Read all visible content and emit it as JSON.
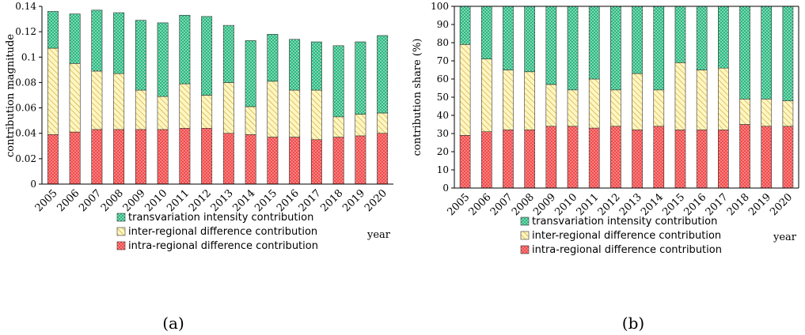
{
  "colors": {
    "transvariation_fill": "#2ab77f",
    "transvariation_dot": "#e6fff2",
    "inter_fill": "#fff6c2",
    "inter_hatch": "#c8a227",
    "intra_fill": "#f24a4a",
    "intra_dot": "#ffd6d6",
    "axis": "#000000"
  },
  "chart_data": [
    {
      "type": "bar",
      "stacked": true,
      "panel_label": "(a)",
      "ylabel": "contribution magnitude",
      "xlabel": "year",
      "ylim": [
        0,
        0.14
      ],
      "yticks": [
        0,
        0.02,
        0.04,
        0.06,
        0.08,
        0.1,
        0.12,
        0.14
      ],
      "ytick_labels": [
        "0",
        "0.02",
        "0.04",
        "0.06",
        "0.08",
        "0.1",
        "0.12",
        "0.14"
      ],
      "categories": [
        "2005",
        "2006",
        "2007",
        "2008",
        "2009",
        "2010",
        "2011",
        "2012",
        "2013",
        "2014",
        "2015",
        "2016",
        "2017",
        "2018",
        "2019",
        "2020"
      ],
      "series": [
        {
          "key": "intra",
          "name": "intra-regional difference contribution",
          "values": [
            0.039,
            0.041,
            0.043,
            0.043,
            0.043,
            0.043,
            0.044,
            0.044,
            0.04,
            0.039,
            0.037,
            0.037,
            0.035,
            0.037,
            0.038,
            0.04
          ]
        },
        {
          "key": "inter",
          "name": "inter-regional difference contribution",
          "values": [
            0.068,
            0.054,
            0.046,
            0.044,
            0.031,
            0.026,
            0.035,
            0.026,
            0.04,
            0.022,
            0.044,
            0.037,
            0.039,
            0.016,
            0.017,
            0.016
          ]
        },
        {
          "key": "trans",
          "name": "transvariation intensity contribution",
          "values": [
            0.029,
            0.039,
            0.048,
            0.048,
            0.055,
            0.058,
            0.054,
            0.062,
            0.045,
            0.052,
            0.037,
            0.04,
            0.038,
            0.056,
            0.057,
            0.061
          ]
        }
      ],
      "legend": [
        "transvariation intensity contribution",
        "inter-regional difference contribution",
        "intra-regional difference contribution"
      ]
    },
    {
      "type": "bar",
      "stacked": true,
      "panel_label": "(b)",
      "ylabel": "contribution share (%)",
      "xlabel": "year",
      "ylim": [
        0,
        100
      ],
      "yticks": [
        0,
        10,
        20,
        30,
        40,
        50,
        60,
        70,
        80,
        90,
        100
      ],
      "ytick_labels": [
        "0",
        "10",
        "20",
        "30",
        "40",
        "50",
        "60",
        "70",
        "80",
        "90",
        "100"
      ],
      "categories": [
        "2005",
        "2006",
        "2007",
        "2008",
        "2009",
        "2010",
        "2011",
        "2012",
        "2013",
        "2014",
        "2015",
        "2016",
        "2017",
        "2018",
        "2019",
        "2020"
      ],
      "series": [
        {
          "key": "intra",
          "name": "intra-regional difference contribution",
          "values": [
            29,
            31,
            32,
            32,
            34,
            34,
            33,
            34,
            32,
            34,
            32,
            32,
            32,
            35,
            34,
            34
          ]
        },
        {
          "key": "inter",
          "name": "inter-regional difference contribution",
          "values": [
            50,
            40,
            33,
            32,
            23,
            20,
            27,
            20,
            31,
            20,
            37,
            33,
            34,
            14,
            15,
            14
          ]
        },
        {
          "key": "trans",
          "name": "transvariation intensity contribution",
          "values": [
            21,
            29,
            35,
            36,
            43,
            46,
            40,
            46,
            37,
            46,
            31,
            35,
            34,
            51,
            51,
            52
          ]
        }
      ],
      "legend": [
        "transvariation intensity contribution",
        "inter-regional difference contribution",
        "intra-regional difference contribution"
      ]
    }
  ]
}
